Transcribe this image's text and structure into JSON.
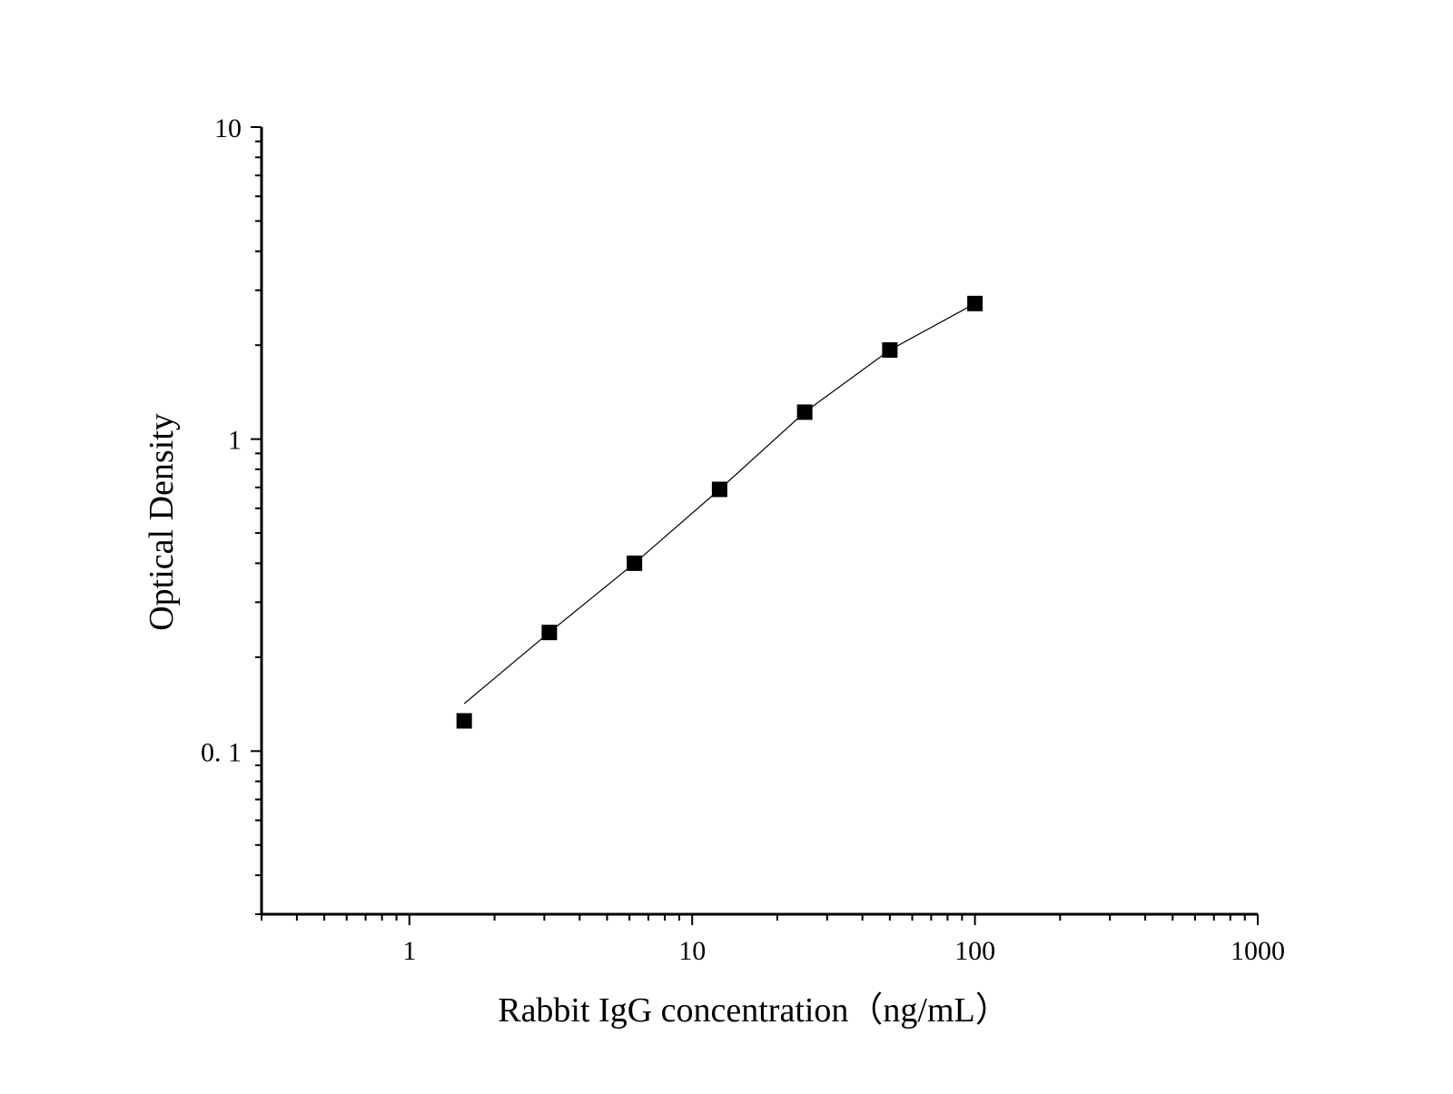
{
  "chart_data": {
    "type": "scatter",
    "title": "",
    "xlabel": "Rabbit IgG concentration（ng/mL）",
    "ylabel": "Optical Density",
    "x_scale": "log",
    "y_scale": "log",
    "xlim": [
      0.3,
      1000
    ],
    "ylim": [
      0.03,
      10
    ],
    "x_major_ticks": [
      1,
      10,
      100,
      1000
    ],
    "x_tick_labels": [
      "1",
      "10",
      "100",
      "1000"
    ],
    "y_major_ticks": [
      0.1,
      1,
      10
    ],
    "y_tick_labels": [
      "0. 1",
      "1",
      "10"
    ],
    "grid": false,
    "legend": "none",
    "marker": "square",
    "marker_color": "#000000",
    "line_color": "#000000",
    "series": [
      {
        "x": [
          1.5625,
          3.125,
          6.25,
          12.5,
          25,
          50,
          100
        ],
        "y": [
          0.125,
          0.24,
          0.4,
          0.69,
          1.22,
          1.93,
          2.72
        ]
      }
    ],
    "fit_line": {
      "x": [
        1.5625,
        3.125,
        6.25,
        12.5,
        25,
        50,
        100
      ],
      "y": [
        0.142,
        0.24,
        0.4,
        0.69,
        1.22,
        1.93,
        2.72
      ]
    }
  }
}
